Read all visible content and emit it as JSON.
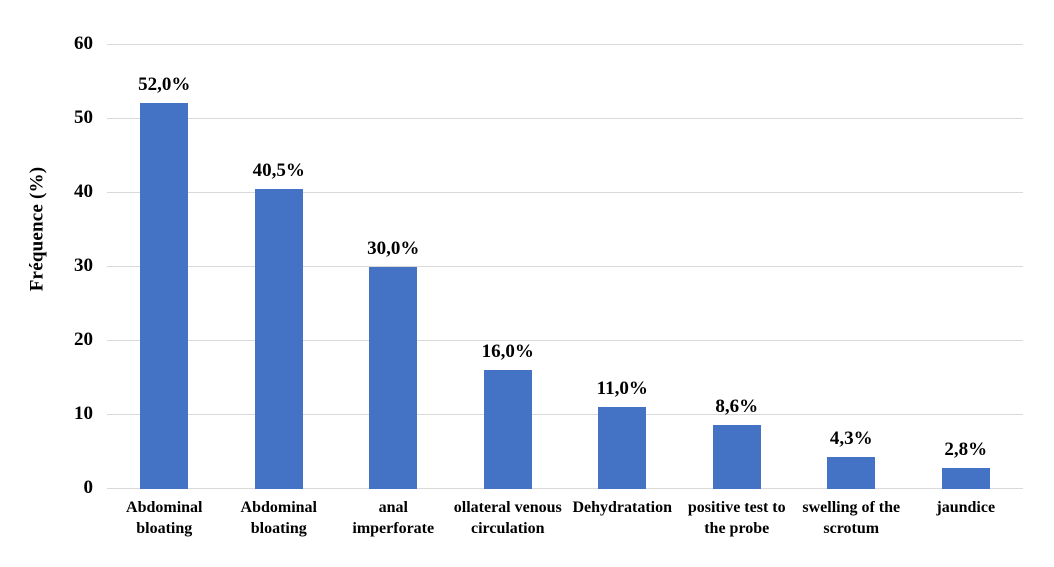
{
  "figure": {
    "background": "#FFFFFF"
  },
  "colors": {
    "bar": "#4472C4",
    "gridline": "#D9D9D9",
    "text": "#000000"
  },
  "chart_data": {
    "type": "bar",
    "title": "",
    "xlabel": "",
    "ylabel": "Fréquence (%)",
    "ylim": [
      0,
      60
    ],
    "yticks": [
      0,
      10,
      20,
      30,
      40,
      50,
      60
    ],
    "ytick_labels": [
      "0",
      "10",
      "20",
      "30",
      "40",
      "50",
      "60"
    ],
    "grid": true,
    "legend": "none",
    "categories": [
      "Abdominal bloating",
      "Abdominal bloating",
      "anal imperforate",
      "ollateral venous circulation",
      "Dehydratation",
      "positive test to the probe",
      "swelling of the scrotum",
      "jaundice"
    ],
    "values": [
      52.0,
      40.5,
      30.0,
      16.0,
      11.0,
      8.6,
      4.3,
      2.8
    ],
    "data_labels": [
      "52,0%",
      "40,5%",
      "30,0%",
      "16,0%",
      "11,0%",
      "8,6%",
      "4,3%",
      "2,8%"
    ]
  }
}
